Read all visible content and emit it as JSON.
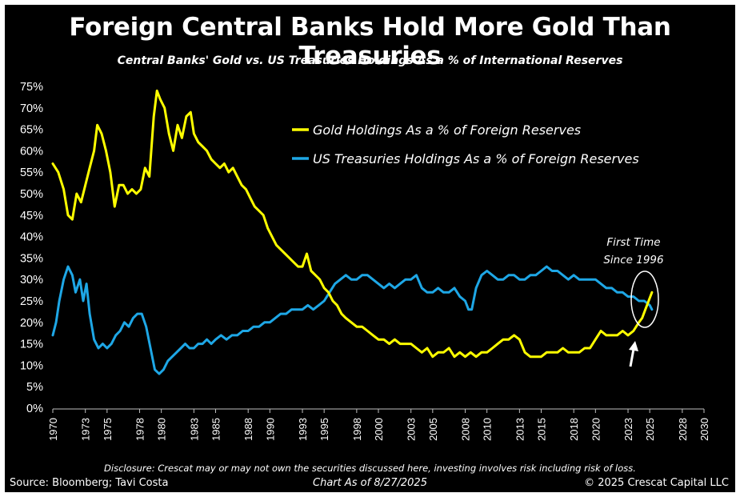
{
  "title": "Foreign Central Banks Hold More Gold Than Treasuries",
  "subtitle": "Central Banks' Gold vs. US Treasuries Holdings As a % of International Reserves",
  "annotation": {
    "line1": "First Time",
    "line2": "Since 1996"
  },
  "disclosure": "Disclosure: Crescat may or may not own the securities discussed here, investing involves risk including risk of loss.",
  "source": "Source: Bloomberg; Tavi Costa",
  "as_of": "Chart As of 8/27/2025",
  "copyright": "© 2025 Crescat Capital LLC",
  "colors": {
    "gold": "#ffff00",
    "treasuries": "#1ea7e6",
    "background": "#000000",
    "text": "#ffffff"
  },
  "chart_data": {
    "type": "line",
    "title": "Foreign Central Banks Hold More Gold Than Treasuries",
    "subtitle": "Central Banks' Gold vs. US Treasuries Holdings As a % of International Reserves",
    "xlabel": "",
    "ylabel": "",
    "xlim": [
      1970,
      2030
    ],
    "ylim": [
      0,
      75
    ],
    "x_ticks": [
      1970,
      1973,
      1975,
      1978,
      1980,
      1983,
      1985,
      1988,
      1990,
      1993,
      1995,
      1998,
      2000,
      2003,
      2005,
      2008,
      2010,
      2013,
      2015,
      2018,
      2020,
      2023,
      2025,
      2028,
      2030
    ],
    "y_ticks": [
      0,
      5,
      10,
      15,
      20,
      25,
      30,
      35,
      40,
      45,
      50,
      55,
      60,
      65,
      70,
      75
    ],
    "y_tick_labels": [
      "0%",
      "5%",
      "10%",
      "15%",
      "20%",
      "25%",
      "30%",
      "35%",
      "40%",
      "45%",
      "50%",
      "55%",
      "60%",
      "65%",
      "70%",
      "75%"
    ],
    "legend_position": "top-right",
    "series": [
      {
        "name": "Gold Holdings As a % of Foreign Reserves",
        "color": "#ffff00",
        "x": [
          1970,
          1970.5,
          1971,
          1971.4,
          1971.8,
          1972.2,
          1972.6,
          1973.0,
          1973.4,
          1973.8,
          1974.1,
          1974.5,
          1974.9,
          1975.3,
          1975.7,
          1976.1,
          1976.5,
          1976.9,
          1977.3,
          1977.7,
          1978.1,
          1978.5,
          1978.9,
          1979.3,
          1979.6,
          1979.9,
          1980.3,
          1980.7,
          1981.1,
          1981.5,
          1981.9,
          1982.3,
          1982.7,
          1983.0,
          1983.4,
          1983.8,
          1984.2,
          1984.6,
          1985.0,
          1985.4,
          1985.8,
          1986.2,
          1986.6,
          1987.0,
          1987.4,
          1987.8,
          1988.2,
          1988.6,
          1989.0,
          1989.4,
          1989.8,
          1990.2,
          1990.6,
          1991.0,
          1991.4,
          1991.8,
          1992.2,
          1992.6,
          1993.0,
          1993.4,
          1993.8,
          1994.2,
          1994.6,
          1995.0,
          1995.4,
          1995.8,
          1996.2,
          1996.6,
          1997.0,
          1997.5,
          1998.0,
          1998.5,
          1999.0,
          1999.5,
          2000.0,
          2000.5,
          2001.0,
          2001.5,
          2002.0,
          2002.5,
          2003.0,
          2003.5,
          2004.0,
          2004.5,
          2005.0,
          2005.5,
          2006.0,
          2006.5,
          2007.0,
          2007.5,
          2008.0,
          2008.5,
          2009.0,
          2009.5,
          2010.0,
          2010.5,
          2011.0,
          2011.5,
          2012.0,
          2012.5,
          2013.0,
          2013.5,
          2014.0,
          2014.5,
          2015.0,
          2015.5,
          2016.0,
          2016.5,
          2017.0,
          2017.5,
          2018.0,
          2018.5,
          2019.0,
          2019.5,
          2020.0,
          2020.5,
          2021.0,
          2021.5,
          2022.0,
          2022.5,
          2023.0,
          2023.5,
          2024.0,
          2024.3,
          2024.6,
          2024.9,
          2025.2
        ],
        "y": [
          57,
          55,
          51,
          45,
          44,
          50,
          48,
          52,
          56,
          60,
          66,
          64,
          60,
          55,
          47,
          52,
          52,
          50,
          51,
          50,
          51,
          56,
          54,
          68,
          74,
          72,
          70,
          64,
          60,
          66,
          63,
          68,
          69,
          64,
          62,
          61,
          60,
          58,
          57,
          56,
          57,
          55,
          56,
          54,
          52,
          51,
          49,
          47,
          46,
          45,
          42,
          40,
          38,
          37,
          36,
          35,
          34,
          33,
          33,
          36,
          32,
          31,
          30,
          28,
          27,
          25,
          24,
          22,
          21,
          20,
          19,
          19,
          18,
          17,
          16,
          16,
          15,
          16,
          15,
          15,
          15,
          14,
          13,
          14,
          12,
          13,
          13,
          14,
          12,
          13,
          12,
          13,
          12,
          13,
          13,
          14,
          15,
          16,
          16,
          17,
          16,
          13,
          12,
          12,
          12,
          13,
          13,
          13,
          14,
          13,
          13,
          13,
          14,
          14,
          16,
          18,
          17,
          17,
          17,
          18,
          17,
          18,
          20,
          21,
          23,
          25,
          27
        ]
      },
      {
        "name": "US Treasuries Holdings As a % of Foreign Reserves",
        "color": "#1ea7e6",
        "x": [
          1970,
          1970.3,
          1970.6,
          1971.0,
          1971.4,
          1971.8,
          1972.1,
          1972.5,
          1972.8,
          1973.1,
          1973.4,
          1973.8,
          1974.2,
          1974.6,
          1975.0,
          1975.4,
          1975.8,
          1976.2,
          1976.6,
          1977.0,
          1977.4,
          1977.8,
          1978.2,
          1978.6,
          1979.0,
          1979.4,
          1979.8,
          1980.2,
          1980.6,
          1981.0,
          1981.4,
          1981.8,
          1982.2,
          1982.6,
          1983.0,
          1983.4,
          1983.8,
          1984.2,
          1984.6,
          1985.0,
          1985.5,
          1986.0,
          1986.5,
          1987.0,
          1987.5,
          1988.0,
          1988.5,
          1989.0,
          1989.5,
          1990.0,
          1990.5,
          1991.0,
          1991.5,
          1992.0,
          1992.5,
          1993.0,
          1993.5,
          1994.0,
          1994.5,
          1995.0,
          1995.5,
          1996.0,
          1996.5,
          1997.0,
          1997.5,
          1998.0,
          1998.5,
          1999.0,
          1999.5,
          2000.0,
          2000.5,
          2001.0,
          2001.5,
          2002.0,
          2002.5,
          2003.0,
          2003.5,
          2004.0,
          2004.5,
          2005.0,
          2005.5,
          2006.0,
          2006.5,
          2007.0,
          2007.5,
          2008.0,
          2008.3,
          2008.6,
          2009.0,
          2009.5,
          2010.0,
          2010.5,
          2011.0,
          2011.5,
          2012.0,
          2012.5,
          2013.0,
          2013.5,
          2014.0,
          2014.5,
          2015.0,
          2015.5,
          2016.0,
          2016.5,
          2017.0,
          2017.5,
          2018.0,
          2018.5,
          2019.0,
          2019.5,
          2020.0,
          2020.5,
          2021.0,
          2021.5,
          2022.0,
          2022.5,
          2023.0,
          2023.5,
          2024.0,
          2024.5,
          2025.0,
          2025.2
        ],
        "y": [
          17,
          20,
          25,
          30,
          33,
          31,
          27,
          30,
          25,
          29,
          22,
          16,
          14,
          15,
          14,
          15,
          17,
          18,
          20,
          19,
          21,
          22,
          22,
          19,
          14,
          9,
          8,
          9,
          11,
          12,
          13,
          14,
          15,
          14,
          14,
          15,
          15,
          16,
          15,
          16,
          17,
          16,
          17,
          17,
          18,
          18,
          19,
          19,
          20,
          20,
          21,
          22,
          22,
          23,
          23,
          23,
          24,
          23,
          24,
          25,
          27,
          29,
          30,
          31,
          30,
          30,
          31,
          31,
          30,
          29,
          28,
          29,
          28,
          29,
          30,
          30,
          31,
          28,
          27,
          27,
          28,
          27,
          27,
          28,
          26,
          25,
          23,
          23,
          28,
          31,
          32,
          31,
          30,
          30,
          31,
          31,
          30,
          30,
          31,
          31,
          32,
          33,
          32,
          32,
          31,
          30,
          31,
          30,
          30,
          30,
          30,
          29,
          28,
          28,
          27,
          27,
          26,
          26,
          25,
          25,
          24,
          23
        ]
      }
    ]
  }
}
